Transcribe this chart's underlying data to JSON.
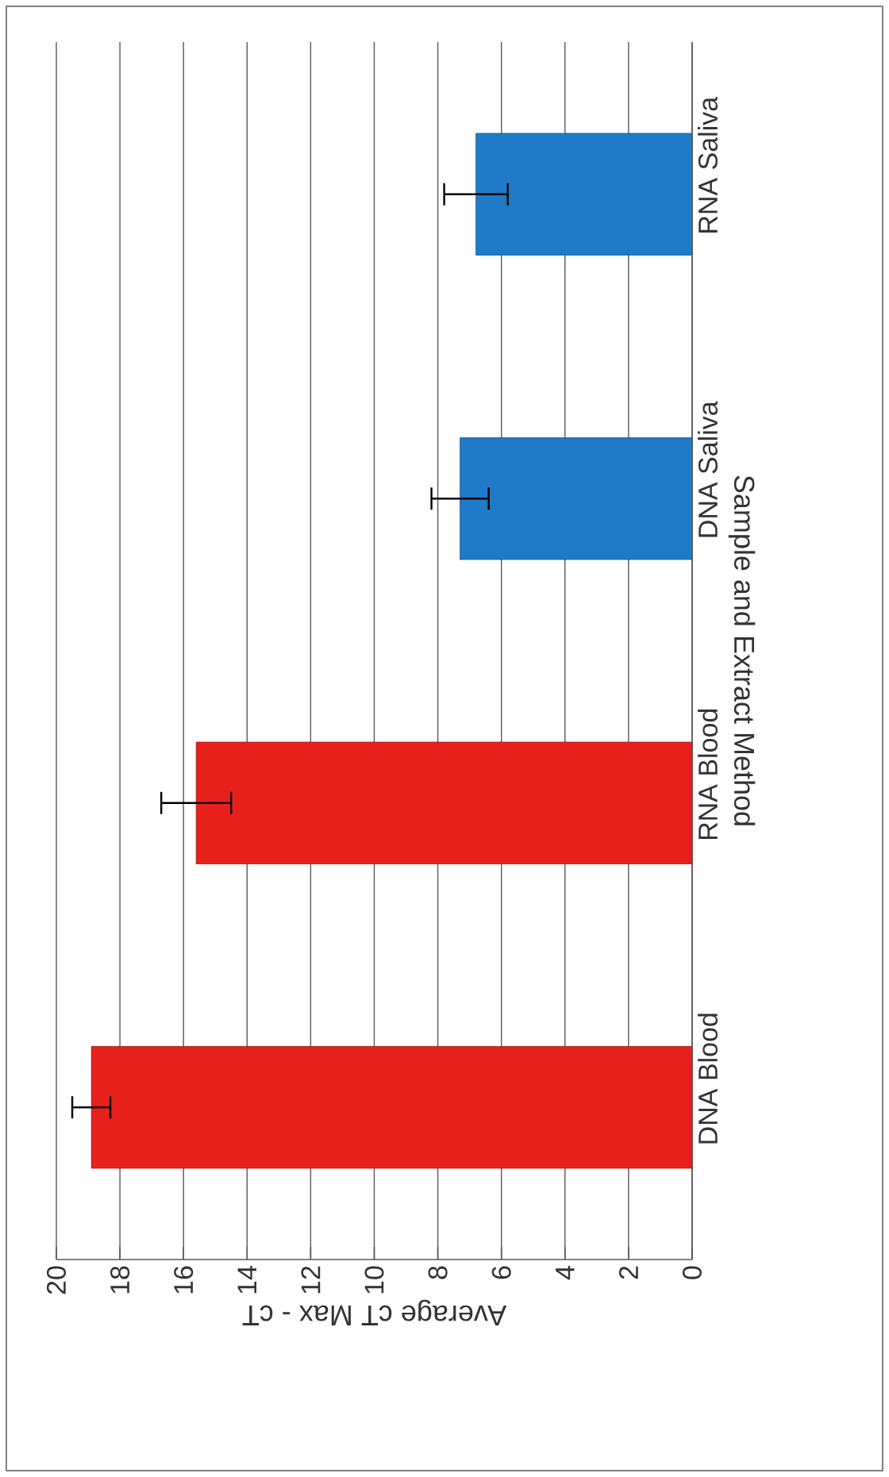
{
  "chart_data": {
    "type": "bar",
    "orientation": "horizontal",
    "xlabel": "Average cT Max - cT",
    "ylabel": "Sample and Extract Method",
    "categories": [
      "RNA Saliva",
      "DNA Saliva",
      "RNA Blood",
      "DNA Blood"
    ],
    "values": [
      6.8,
      7.3,
      15.6,
      18.9
    ],
    "errors": [
      1.0,
      0.9,
      1.1,
      0.6
    ],
    "colors": [
      "#1f7ac8",
      "#1f7ac8",
      "#e8201c",
      "#e8201c"
    ],
    "xlim": [
      20,
      0
    ],
    "xticks": [
      20,
      18,
      16,
      14,
      12,
      10,
      8,
      6,
      4,
      2,
      0
    ],
    "grid": "x"
  }
}
